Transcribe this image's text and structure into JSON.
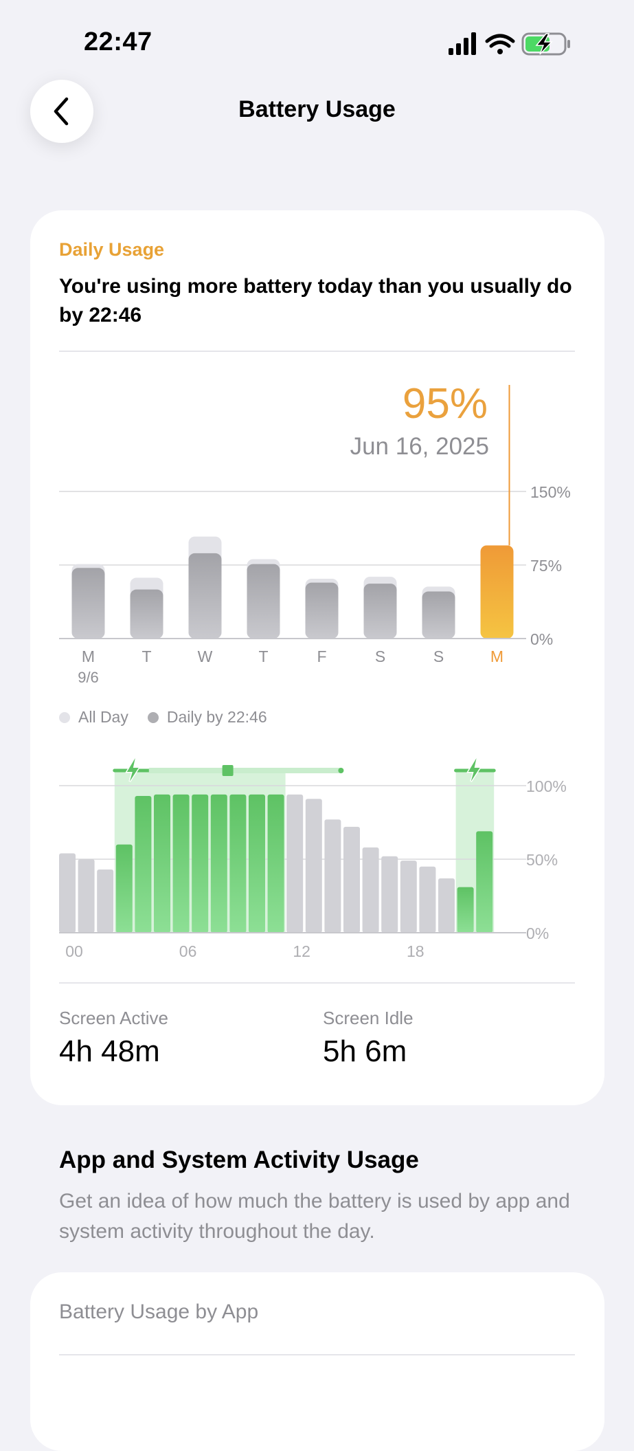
{
  "status": {
    "time": "22:47"
  },
  "nav": {
    "title": "Battery Usage"
  },
  "daily": {
    "section_label": "Daily Usage",
    "headline": "You're using more battery today than you usually do by 22:46",
    "selected_value": "95%",
    "selected_date": "Jun 16, 2025",
    "legend": {
      "all_day": "All Day",
      "daily_by": "Daily by 22:46"
    }
  },
  "chart_data": [
    {
      "type": "bar",
      "categories": [
        "M",
        "T",
        "W",
        "T",
        "F",
        "S",
        "S",
        "M"
      ],
      "category_sublabels": [
        "9/6",
        "",
        "",
        "",
        "",
        "",
        "",
        ""
      ],
      "series": [
        {
          "name": "All Day",
          "values": [
            76,
            62,
            104,
            81,
            61,
            63,
            53,
            95
          ]
        },
        {
          "name": "Daily by 22:46",
          "values": [
            72,
            50,
            87,
            76,
            57,
            56,
            48,
            95
          ]
        }
      ],
      "ylim": [
        0,
        150
      ],
      "yticks": [
        "150%",
        "75%",
        "0%"
      ],
      "selected_index": 7,
      "colors": {
        "all_day": "#e3e3e8",
        "daily": "#aeaeb2",
        "selected_top": "#ef9a37",
        "selected_bottom": "#f5c442"
      }
    },
    {
      "type": "bar",
      "x_ticks": [
        "00",
        "06",
        "12",
        "18"
      ],
      "yticks": [
        "100%",
        "50%",
        "0%"
      ],
      "ylim": [
        0,
        100
      ],
      "values": [
        54,
        50,
        43,
        60,
        93,
        94,
        94,
        94,
        94,
        94,
        94,
        94,
        94,
        91,
        77,
        72,
        58,
        52,
        49,
        45,
        37,
        31,
        69
      ],
      "charging": [
        false,
        false,
        false,
        true,
        true,
        true,
        true,
        true,
        true,
        true,
        true,
        true,
        false,
        false,
        false,
        false,
        false,
        false,
        false,
        false,
        false,
        true,
        true
      ],
      "colors": {
        "normal": "#d1d1d6",
        "charging_top": "#5ec264",
        "charging_bottom": "#8ddf95",
        "charging_band": "#d7f2da"
      }
    }
  ],
  "stats": {
    "screen_active_label": "Screen Active",
    "screen_active_value": "4h 48m",
    "screen_idle_label": "Screen Idle",
    "screen_idle_value": "5h 6m"
  },
  "activity": {
    "title": "App and System Activity Usage",
    "description": "Get an idea of how much the battery is used by app and system activity throughout the day.",
    "row_label": "Battery Usage by App"
  }
}
